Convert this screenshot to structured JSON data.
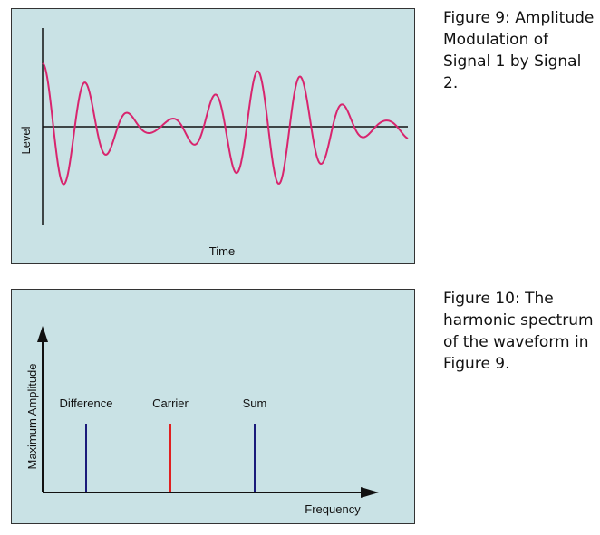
{
  "figure9": {
    "caption": "Figure 9: Amplitude Modulation of Signal 1 by Signal 2.",
    "ylabel": "Level",
    "xlabel": "Time",
    "wave_color": "#d8256e",
    "axis_color": "#111111"
  },
  "figure10": {
    "caption": "Figure 10: The harmonic spectrum of the waveform in Figure 9.",
    "ylabel": "Maximum Amplitude",
    "xlabel": "Frequency",
    "lines": [
      {
        "label": "Difference",
        "color": "#1a1a7a"
      },
      {
        "label": "Carrier",
        "color": "#e02020"
      },
      {
        "label": "Sum",
        "color": "#1a1a7a"
      }
    ]
  }
}
